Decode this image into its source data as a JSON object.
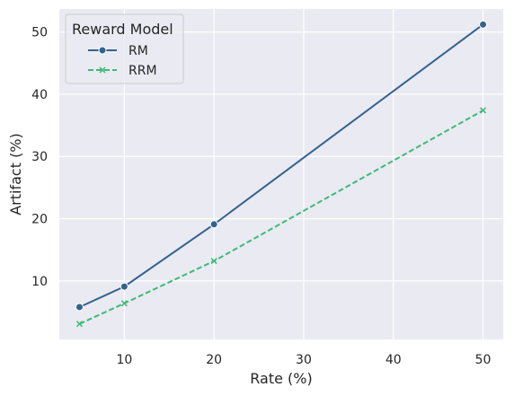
{
  "chart_data": {
    "type": "line",
    "xlabel": "Rate (%)",
    "ylabel": "Artifact (%)",
    "x": [
      5,
      10,
      20,
      50
    ],
    "xticks": [
      10,
      20,
      30,
      40,
      50
    ],
    "yticks": [
      10,
      20,
      30,
      40,
      50
    ],
    "xlim": [
      2.75,
      52.25
    ],
    "ylim": [
      0.6,
      53.7
    ],
    "grid": true,
    "legend": {
      "title": "Reward Model",
      "placement": "top-left"
    },
    "series": [
      {
        "name": "RM",
        "values": [
          5.8,
          9.1,
          19.1,
          51.2
        ],
        "color": "#33638d",
        "marker": "circle",
        "linestyle": "solid"
      },
      {
        "name": "RRM",
        "values": [
          3.1,
          6.4,
          13.2,
          37.4
        ],
        "color": "#3cbb75",
        "marker": "x",
        "linestyle": "dashed"
      }
    ],
    "background_color": "#eaeaf2",
    "grid_color": "#ffffff"
  }
}
